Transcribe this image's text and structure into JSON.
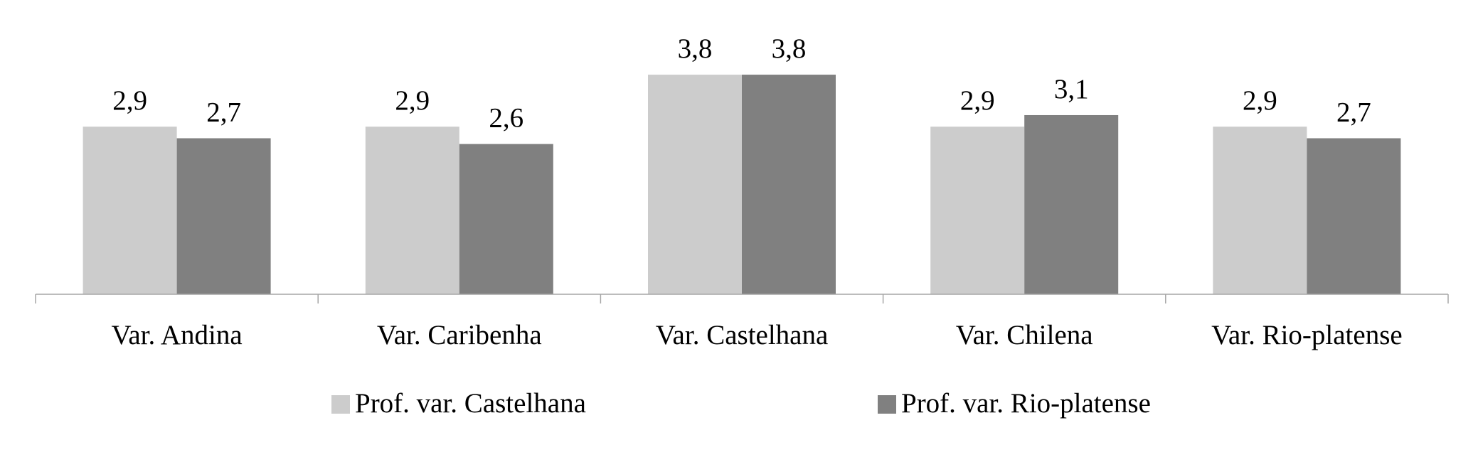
{
  "chart_data": {
    "type": "bar",
    "title": "",
    "xlabel": "",
    "ylabel": "",
    "categories": [
      "Var. Andina",
      "Var. Caribenha",
      "Var. Castelhana",
      "Var. Chilena",
      "Var. Rio-platense"
    ],
    "series": [
      {
        "name": "Prof. var. Castelhana",
        "color": "#cccccc",
        "values": [
          2.9,
          2.9,
          3.8,
          2.9,
          2.9
        ],
        "labels": [
          "2,9",
          "2,9",
          "3,8",
          "2,9",
          "2,9"
        ]
      },
      {
        "name": "Prof. var. Rio-platense",
        "color": "#808080",
        "values": [
          2.7,
          2.6,
          3.8,
          3.1,
          2.7
        ],
        "labels": [
          "2,7",
          "2,6",
          "3,8",
          "3,1",
          "2,7"
        ]
      }
    ],
    "ylim": [
      0,
      4
    ],
    "grid": false,
    "y_axis_visible": false,
    "legend_position": "bottom",
    "axis_color": "#a6a6a6"
  }
}
